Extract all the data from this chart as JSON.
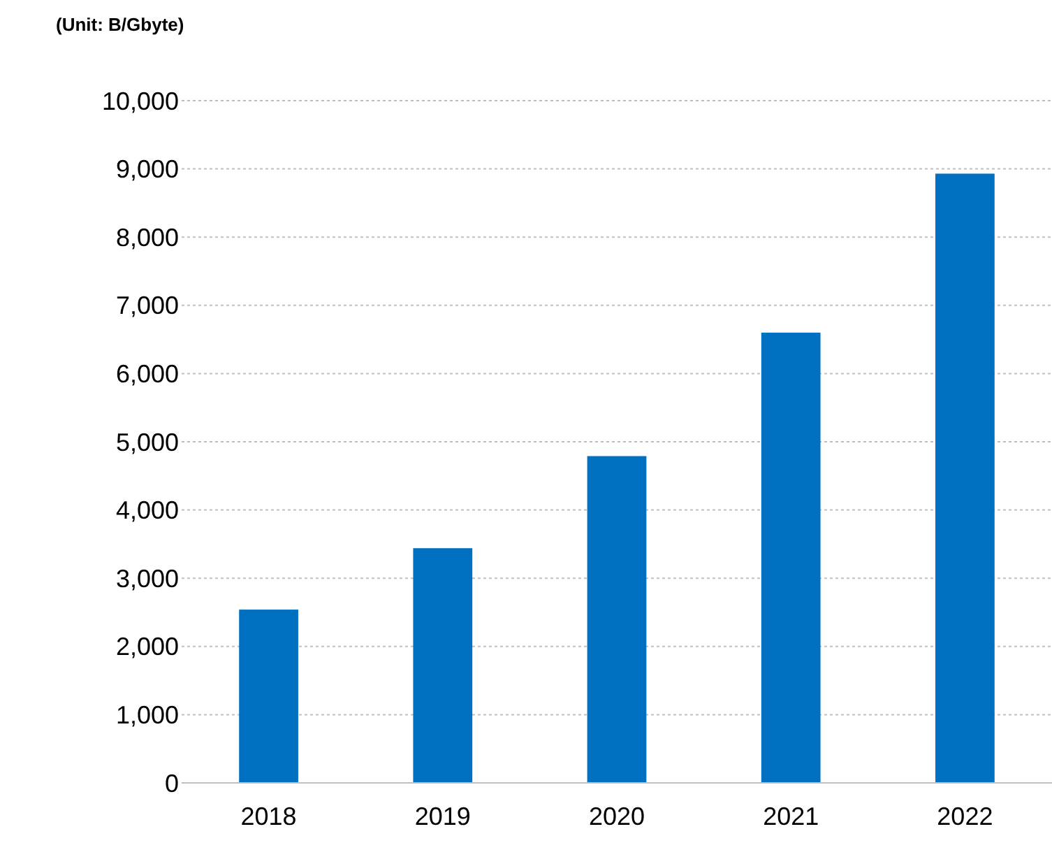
{
  "chart_data": {
    "type": "bar",
    "ylabel": "(Unit: B/Gbyte)",
    "categories": [
      "2018",
      "2019",
      "2020",
      "2021",
      "2022"
    ],
    "values": [
      2540,
      3440,
      4790,
      6600,
      8930
    ],
    "color": "#0070c0",
    "ylim": [
      0,
      10000
    ],
    "yticks": [
      {
        "value": 0,
        "label": "0"
      },
      {
        "value": 1000,
        "label": "1,000"
      },
      {
        "value": 2000,
        "label": "2,000"
      },
      {
        "value": 3000,
        "label": "3,000"
      },
      {
        "value": 4000,
        "label": "4,000"
      },
      {
        "value": 5000,
        "label": "5,000"
      },
      {
        "value": 6000,
        "label": "6,000"
      },
      {
        "value": 7000,
        "label": "7,000"
      },
      {
        "value": 8000,
        "label": "8,000"
      },
      {
        "value": 9000,
        "label": "9,000"
      },
      {
        "value": 10000,
        "label": "10,000"
      }
    ],
    "grid": "y"
  }
}
